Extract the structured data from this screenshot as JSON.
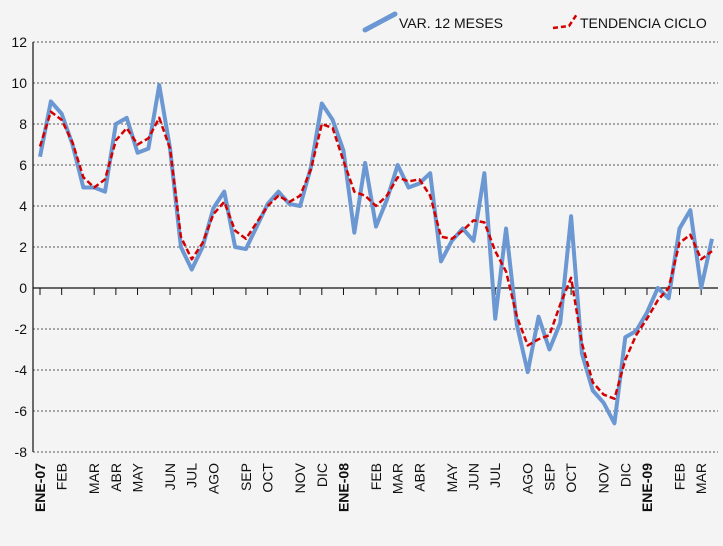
{
  "chart_data": {
    "type": "line",
    "categories": [
      "ENE-07",
      null,
      "FEB",
      null,
      null,
      "MAR",
      null,
      "ABR",
      null,
      "MAY",
      null,
      null,
      "JUN",
      null,
      "JUL",
      null,
      "AGO",
      null,
      null,
      "SEP",
      null,
      "OCT",
      null,
      null,
      "NOV",
      null,
      "DIC",
      null,
      "ENE-08",
      null,
      null,
      "FEB",
      null,
      "MAR",
      null,
      "ABR",
      null,
      null,
      "MAY",
      null,
      "JUN",
      null,
      "JUL",
      null,
      null,
      "AGO",
      null,
      "SEP",
      null,
      "OCT",
      null,
      null,
      "NOV",
      null,
      "DIC",
      null,
      "ENE-09",
      null,
      null,
      "FEB",
      null,
      "MAR",
      null
    ],
    "series": [
      {
        "name": "VAR. 12 MESES",
        "color": "#6b98d2",
        "values": [
          6.4,
          9.1,
          8.5,
          7.0,
          4.9,
          4.9,
          4.7,
          8.0,
          8.3,
          6.6,
          6.8,
          9.9,
          6.8,
          2.0,
          0.9,
          2.0,
          3.9,
          4.7,
          2.0,
          1.9,
          3.0,
          4.1,
          4.7,
          4.1,
          4.0,
          5.9,
          9.0,
          8.2,
          6.7,
          2.7,
          6.1,
          3.0,
          4.3,
          6.0,
          4.9,
          5.1,
          5.6,
          1.3,
          2.3,
          2.9,
          2.3,
          5.6,
          -1.5,
          2.9,
          -1.8,
          -4.1,
          -1.4,
          -3.0,
          -1.7,
          3.5,
          -3.2,
          -5.0,
          -5.6,
          -6.6,
          -2.4,
          -2.1,
          -1.2,
          0.0,
          -0.5,
          2.9,
          3.8,
          0.0,
          2.4
        ]
      },
      {
        "name": "TENDENCIA CICLO",
        "color": "#d40000",
        "values": [
          6.9,
          8.6,
          8.2,
          7.1,
          5.4,
          4.9,
          5.3,
          7.2,
          7.8,
          7.0,
          7.3,
          8.3,
          6.8,
          2.5,
          1.4,
          2.2,
          3.6,
          4.2,
          2.8,
          2.4,
          3.2,
          4.0,
          4.5,
          4.2,
          4.5,
          5.8,
          8.0,
          7.8,
          6.2,
          4.7,
          4.5,
          4.0,
          4.5,
          5.4,
          5.2,
          5.3,
          4.5,
          2.5,
          2.4,
          2.8,
          3.3,
          3.2,
          1.8,
          0.8,
          -1.4,
          -2.8,
          -2.5,
          -2.3,
          -0.8,
          0.5,
          -2.7,
          -4.6,
          -5.2,
          -5.4,
          -3.5,
          -2.3,
          -1.5,
          -0.6,
          0.0,
          2.2,
          2.6,
          1.4,
          1.8
        ]
      }
    ],
    "ylim": [
      -8,
      12
    ],
    "yticks": [
      -8,
      -6,
      -4,
      -2,
      0,
      2,
      4,
      6,
      8,
      10,
      12
    ],
    "grid": true
  }
}
